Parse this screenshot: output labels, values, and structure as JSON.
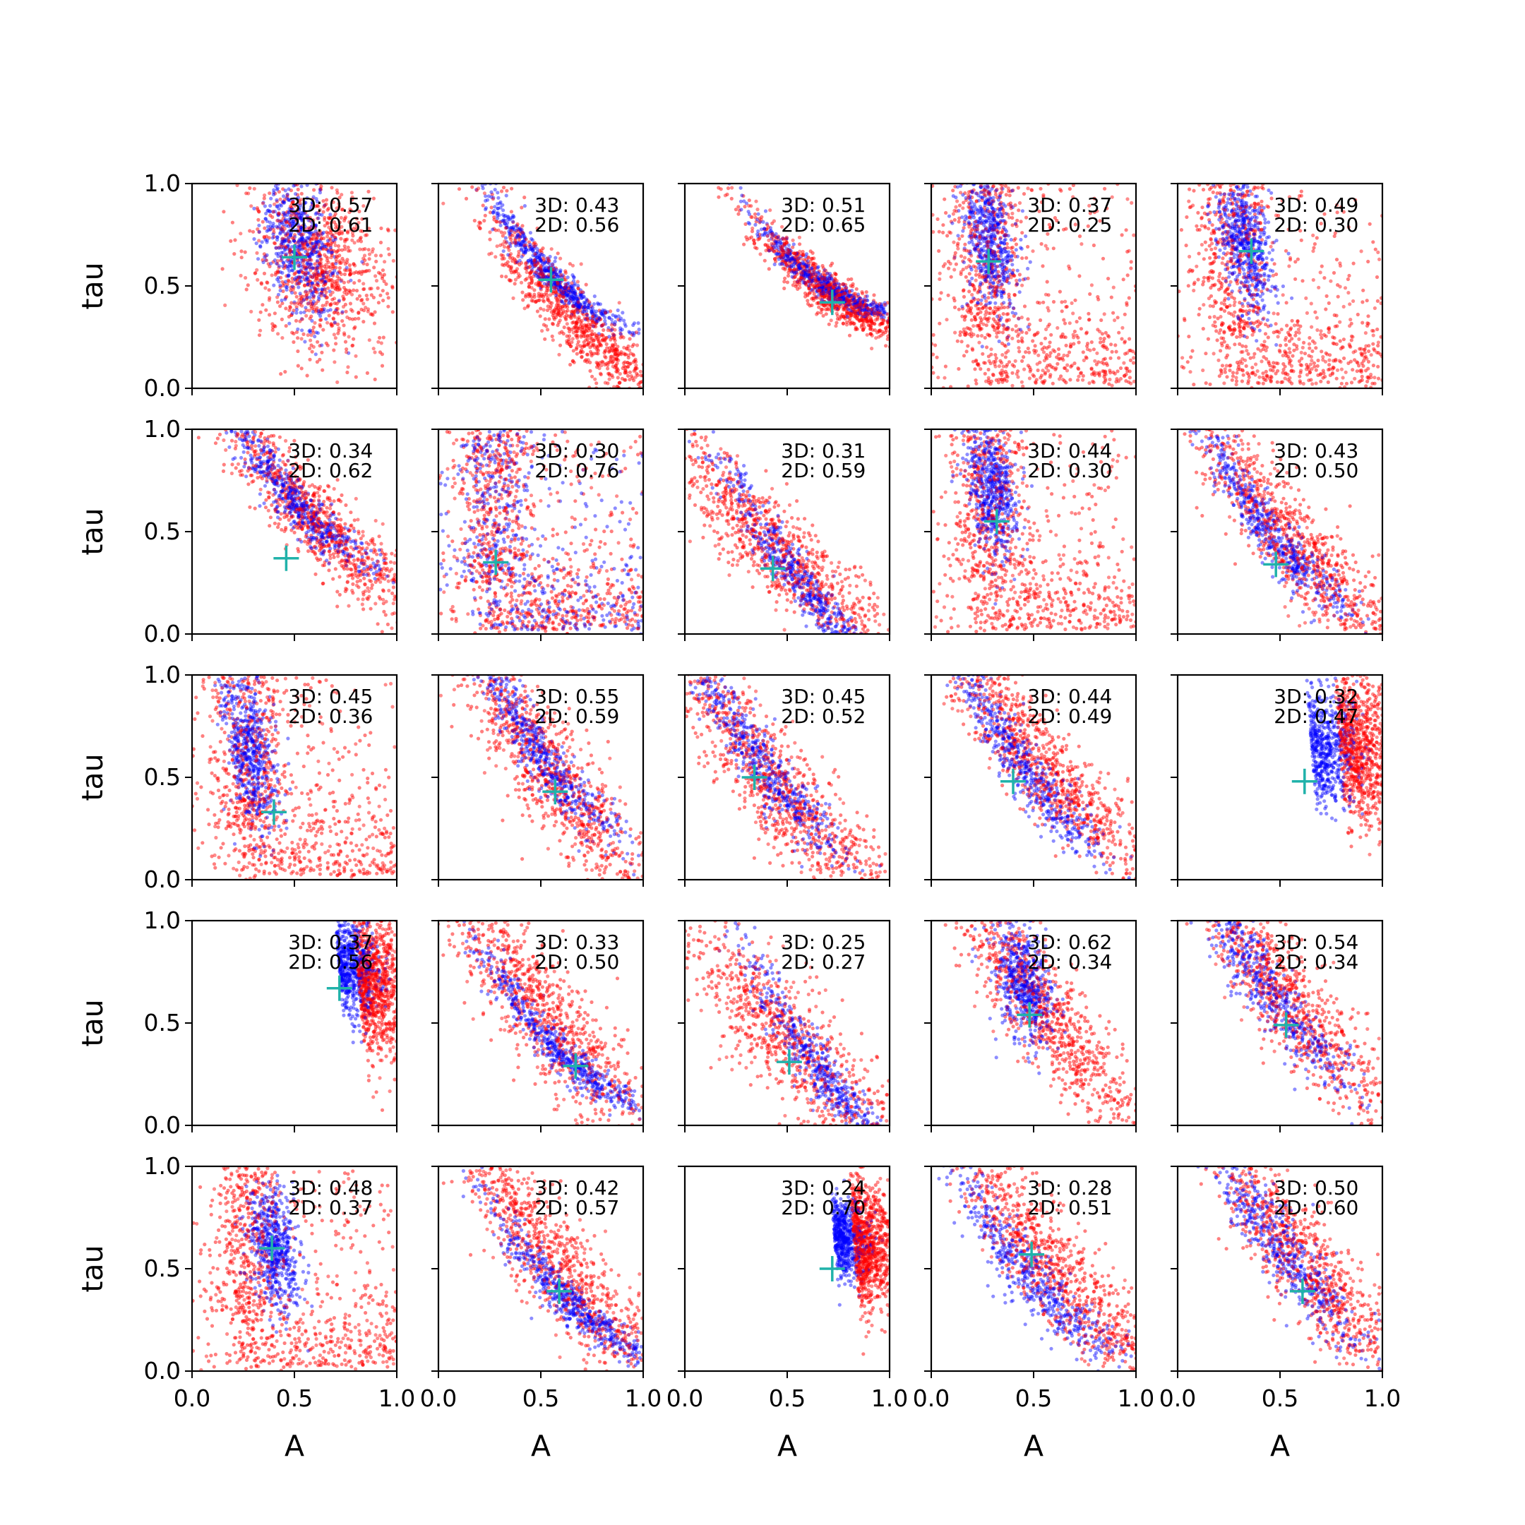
{
  "chart_data": {
    "type": "scatter",
    "layout": {
      "rows": 5,
      "cols": 5
    },
    "xlabel": "A",
    "ylabel": "tau",
    "xlim": [
      0,
      1
    ],
    "ylim": [
      0,
      1
    ],
    "xticks": [
      "0.0",
      "0.5",
      "1.0"
    ],
    "yticks": [
      "0.0",
      "0.5",
      "1.0"
    ],
    "grid": false,
    "colors": {
      "series_3d": "#0000ff",
      "series_2d": "#ff0000",
      "marker": "#20b2aa"
    },
    "panels": [
      {
        "label3d": "3D: 0.57",
        "label2d": "2D: 0.61",
        "marker": [
          0.5,
          0.64
        ],
        "blue_cloud": {
          "shape": "vertical",
          "cx": 0.52,
          "cy": 0.7,
          "sx": 0.08,
          "sy": 0.18
        },
        "red_cloud": {
          "shape": "vertical",
          "cx": 0.62,
          "cy": 0.6,
          "sx": 0.16,
          "sy": 0.22
        }
      },
      {
        "label3d": "3D: 0.43",
        "label2d": "2D: 0.56",
        "marker": [
          0.55,
          0.53
        ],
        "blue_cloud": {
          "shape": "curve",
          "cx": 0.55,
          "cy": 0.55,
          "sx": 0.06,
          "sy": 0.05
        },
        "red_cloud": {
          "shape": "curve",
          "cx": 0.65,
          "cy": 0.35,
          "sx": 0.12,
          "sy": 0.12
        }
      },
      {
        "label3d": "3D: 0.51",
        "label2d": "2D: 0.65",
        "marker": [
          0.72,
          0.42
        ],
        "blue_cloud": {
          "shape": "curve_steep",
          "cx": 0.68,
          "cy": 0.5,
          "sx": 0.06,
          "sy": 0.04
        },
        "red_cloud": {
          "shape": "curve_steep",
          "cx": 0.72,
          "cy": 0.45,
          "sx": 0.09,
          "sy": 0.08
        }
      },
      {
        "label3d": "3D: 0.37",
        "label2d": "2D: 0.25",
        "marker": [
          0.28,
          0.62
        ],
        "blue_cloud": {
          "shape": "vertical",
          "cx": 0.28,
          "cy": 0.75,
          "sx": 0.06,
          "sy": 0.18
        },
        "red_cloud": {
          "shape": "L",
          "cx": 0.45,
          "cy": 0.35,
          "sx": 0.25,
          "sy": 0.25
        }
      },
      {
        "label3d": "3D: 0.49",
        "label2d": "2D: 0.30",
        "marker": [
          0.36,
          0.67
        ],
        "blue_cloud": {
          "shape": "vertical",
          "cx": 0.33,
          "cy": 0.72,
          "sx": 0.06,
          "sy": 0.18
        },
        "red_cloud": {
          "shape": "L",
          "cx": 0.4,
          "cy": 0.45,
          "sx": 0.22,
          "sy": 0.28
        }
      },
      {
        "label3d": "3D: 0.34",
        "label2d": "2D: 0.62",
        "marker": [
          0.46,
          0.37
        ],
        "blue_cloud": {
          "shape": "curve",
          "cx": 0.5,
          "cy": 0.65,
          "sx": 0.08,
          "sy": 0.08
        },
        "red_cloud": {
          "shape": "curve",
          "cx": 0.6,
          "cy": 0.55,
          "sx": 0.14,
          "sy": 0.14
        }
      },
      {
        "label3d": "3D: 0.30",
        "label2d": "2D: 0.76",
        "marker": [
          0.28,
          0.35
        ],
        "blue_cloud": {
          "shape": "L",
          "cx": 0.25,
          "cy": 0.3,
          "sx": 0.12,
          "sy": 0.12
        },
        "red_cloud": {
          "shape": "L",
          "cx": 0.3,
          "cy": 0.35,
          "sx": 0.2,
          "sy": 0.22
        }
      },
      {
        "label3d": "3D: 0.31",
        "label2d": "2D: 0.59",
        "marker": [
          0.43,
          0.32
        ],
        "blue_cloud": {
          "shape": "curve_flat",
          "cx": 0.55,
          "cy": 0.27,
          "sx": 0.1,
          "sy": 0.05
        },
        "red_cloud": {
          "shape": "curve",
          "cx": 0.45,
          "cy": 0.4,
          "sx": 0.18,
          "sy": 0.15
        }
      },
      {
        "label3d": "3D: 0.44",
        "label2d": "2D: 0.30",
        "marker": [
          0.32,
          0.55
        ],
        "blue_cloud": {
          "shape": "vertical",
          "cx": 0.3,
          "cy": 0.7,
          "sx": 0.06,
          "sy": 0.18
        },
        "red_cloud": {
          "shape": "L",
          "cx": 0.45,
          "cy": 0.45,
          "sx": 0.22,
          "sy": 0.25
        }
      },
      {
        "label3d": "3D: 0.43",
        "label2d": "2D: 0.50",
        "marker": [
          0.48,
          0.34
        ],
        "blue_cloud": {
          "shape": "curve",
          "cx": 0.45,
          "cy": 0.5,
          "sx": 0.07,
          "sy": 0.1
        },
        "red_cloud": {
          "shape": "curve",
          "cx": 0.55,
          "cy": 0.45,
          "sx": 0.15,
          "sy": 0.18
        }
      },
      {
        "label3d": "3D: 0.45",
        "label2d": "2D: 0.36",
        "marker": [
          0.4,
          0.33
        ],
        "blue_cloud": {
          "shape": "vertical",
          "cx": 0.28,
          "cy": 0.65,
          "sx": 0.06,
          "sy": 0.2
        },
        "red_cloud": {
          "shape": "L",
          "cx": 0.4,
          "cy": 0.4,
          "sx": 0.22,
          "sy": 0.28
        }
      },
      {
        "label3d": "3D: 0.55",
        "label2d": "2D: 0.59",
        "marker": [
          0.57,
          0.43
        ],
        "blue_cloud": {
          "shape": "curve",
          "cx": 0.5,
          "cy": 0.6,
          "sx": 0.07,
          "sy": 0.12
        },
        "red_cloud": {
          "shape": "curve",
          "cx": 0.55,
          "cy": 0.5,
          "sx": 0.14,
          "sy": 0.2
        }
      },
      {
        "label3d": "3D: 0.45",
        "label2d": "2D: 0.52",
        "marker": [
          0.34,
          0.5
        ],
        "blue_cloud": {
          "shape": "curve",
          "cx": 0.35,
          "cy": 0.6,
          "sx": 0.07,
          "sy": 0.13
        },
        "red_cloud": {
          "shape": "curve",
          "cx": 0.45,
          "cy": 0.45,
          "sx": 0.16,
          "sy": 0.2
        }
      },
      {
        "label3d": "3D: 0.44",
        "label2d": "2D: 0.49",
        "marker": [
          0.4,
          0.48
        ],
        "blue_cloud": {
          "shape": "curve",
          "cx": 0.45,
          "cy": 0.55,
          "sx": 0.07,
          "sy": 0.12
        },
        "red_cloud": {
          "shape": "curve",
          "cx": 0.55,
          "cy": 0.55,
          "sx": 0.15,
          "sy": 0.18
        }
      },
      {
        "label3d": "3D: 0.32",
        "label2d": "2D: 0.47",
        "marker": [
          0.62,
          0.48
        ],
        "blue_cloud": {
          "shape": "corner",
          "cx": 0.65,
          "cy": 0.65,
          "sx": 0.08,
          "sy": 0.15
        },
        "red_cloud": {
          "shape": "corner",
          "cx": 0.8,
          "cy": 0.65,
          "sx": 0.12,
          "sy": 0.18
        }
      },
      {
        "label3d": "3D: 0.37",
        "label2d": "2D: 0.56",
        "marker": [
          0.72,
          0.67
        ],
        "blue_cloud": {
          "shape": "corner",
          "cx": 0.72,
          "cy": 0.78,
          "sx": 0.07,
          "sy": 0.12
        },
        "red_cloud": {
          "shape": "corner",
          "cx": 0.82,
          "cy": 0.7,
          "sx": 0.1,
          "sy": 0.18
        }
      },
      {
        "label3d": "3D: 0.33",
        "label2d": "2D: 0.50",
        "marker": [
          0.67,
          0.29
        ],
        "blue_cloud": {
          "shape": "curve",
          "cx": 0.6,
          "cy": 0.35,
          "sx": 0.08,
          "sy": 0.06
        },
        "red_cloud": {
          "shape": "curve",
          "cx": 0.5,
          "cy": 0.55,
          "sx": 0.16,
          "sy": 0.2
        }
      },
      {
        "label3d": "3D: 0.25",
        "label2d": "2D: 0.27",
        "marker": [
          0.51,
          0.31
        ],
        "blue_cloud": {
          "shape": "curve_flat",
          "cx": 0.7,
          "cy": 0.22,
          "sx": 0.1,
          "sy": 0.05
        },
        "red_cloud": {
          "shape": "curve",
          "cx": 0.5,
          "cy": 0.4,
          "sx": 0.2,
          "sy": 0.22
        }
      },
      {
        "label3d": "3D: 0.62",
        "label2d": "2D: 0.34",
        "marker": [
          0.48,
          0.54
        ],
        "blue_cloud": {
          "shape": "vertical",
          "cx": 0.45,
          "cy": 0.7,
          "sx": 0.07,
          "sy": 0.15
        },
        "red_cloud": {
          "shape": "curve",
          "cx": 0.55,
          "cy": 0.55,
          "sx": 0.14,
          "sy": 0.2
        }
      },
      {
        "label3d": "3D: 0.54",
        "label2d": "2D: 0.34",
        "marker": [
          0.53,
          0.49
        ],
        "blue_cloud": {
          "shape": "curve",
          "cx": 0.45,
          "cy": 0.65,
          "sx": 0.08,
          "sy": 0.14
        },
        "red_cloud": {
          "shape": "curve",
          "cx": 0.55,
          "cy": 0.6,
          "sx": 0.15,
          "sy": 0.2
        }
      },
      {
        "label3d": "3D: 0.48",
        "label2d": "2D: 0.37",
        "marker": [
          0.39,
          0.6
        ],
        "blue_cloud": {
          "shape": "vertical",
          "cx": 0.4,
          "cy": 0.6,
          "sx": 0.06,
          "sy": 0.15
        },
        "red_cloud": {
          "shape": "L",
          "cx": 0.5,
          "cy": 0.5,
          "sx": 0.2,
          "sy": 0.25
        }
      },
      {
        "label3d": "3D: 0.42",
        "label2d": "2D: 0.57",
        "marker": [
          0.59,
          0.39
        ],
        "blue_cloud": {
          "shape": "curve",
          "cx": 0.65,
          "cy": 0.33,
          "sx": 0.09,
          "sy": 0.06
        },
        "red_cloud": {
          "shape": "curve",
          "cx": 0.55,
          "cy": 0.55,
          "sx": 0.16,
          "sy": 0.2
        }
      },
      {
        "label3d": "3D: 0.24",
        "label2d": "2D: 0.70",
        "marker": [
          0.72,
          0.5
        ],
        "blue_cloud": {
          "shape": "corner",
          "cx": 0.72,
          "cy": 0.65,
          "sx": 0.06,
          "sy": 0.1
        },
        "red_cloud": {
          "shape": "corner",
          "cx": 0.82,
          "cy": 0.62,
          "sx": 0.08,
          "sy": 0.16
        }
      },
      {
        "label3d": "3D: 0.28",
        "label2d": "2D: 0.51",
        "marker": [
          0.49,
          0.57
        ],
        "blue_cloud": {
          "shape": "curve",
          "cx": 0.5,
          "cy": 0.45,
          "sx": 0.1,
          "sy": 0.12
        },
        "red_cloud": {
          "shape": "curve",
          "cx": 0.6,
          "cy": 0.5,
          "sx": 0.15,
          "sy": 0.18
        }
      },
      {
        "label3d": "3D: 0.50",
        "label2d": "2D: 0.60",
        "marker": [
          0.61,
          0.39
        ],
        "blue_cloud": {
          "shape": "curve",
          "cx": 0.5,
          "cy": 0.6,
          "sx": 0.08,
          "sy": 0.14
        },
        "red_cloud": {
          "shape": "curve",
          "cx": 0.6,
          "cy": 0.55,
          "sx": 0.15,
          "sy": 0.2
        }
      }
    ]
  }
}
